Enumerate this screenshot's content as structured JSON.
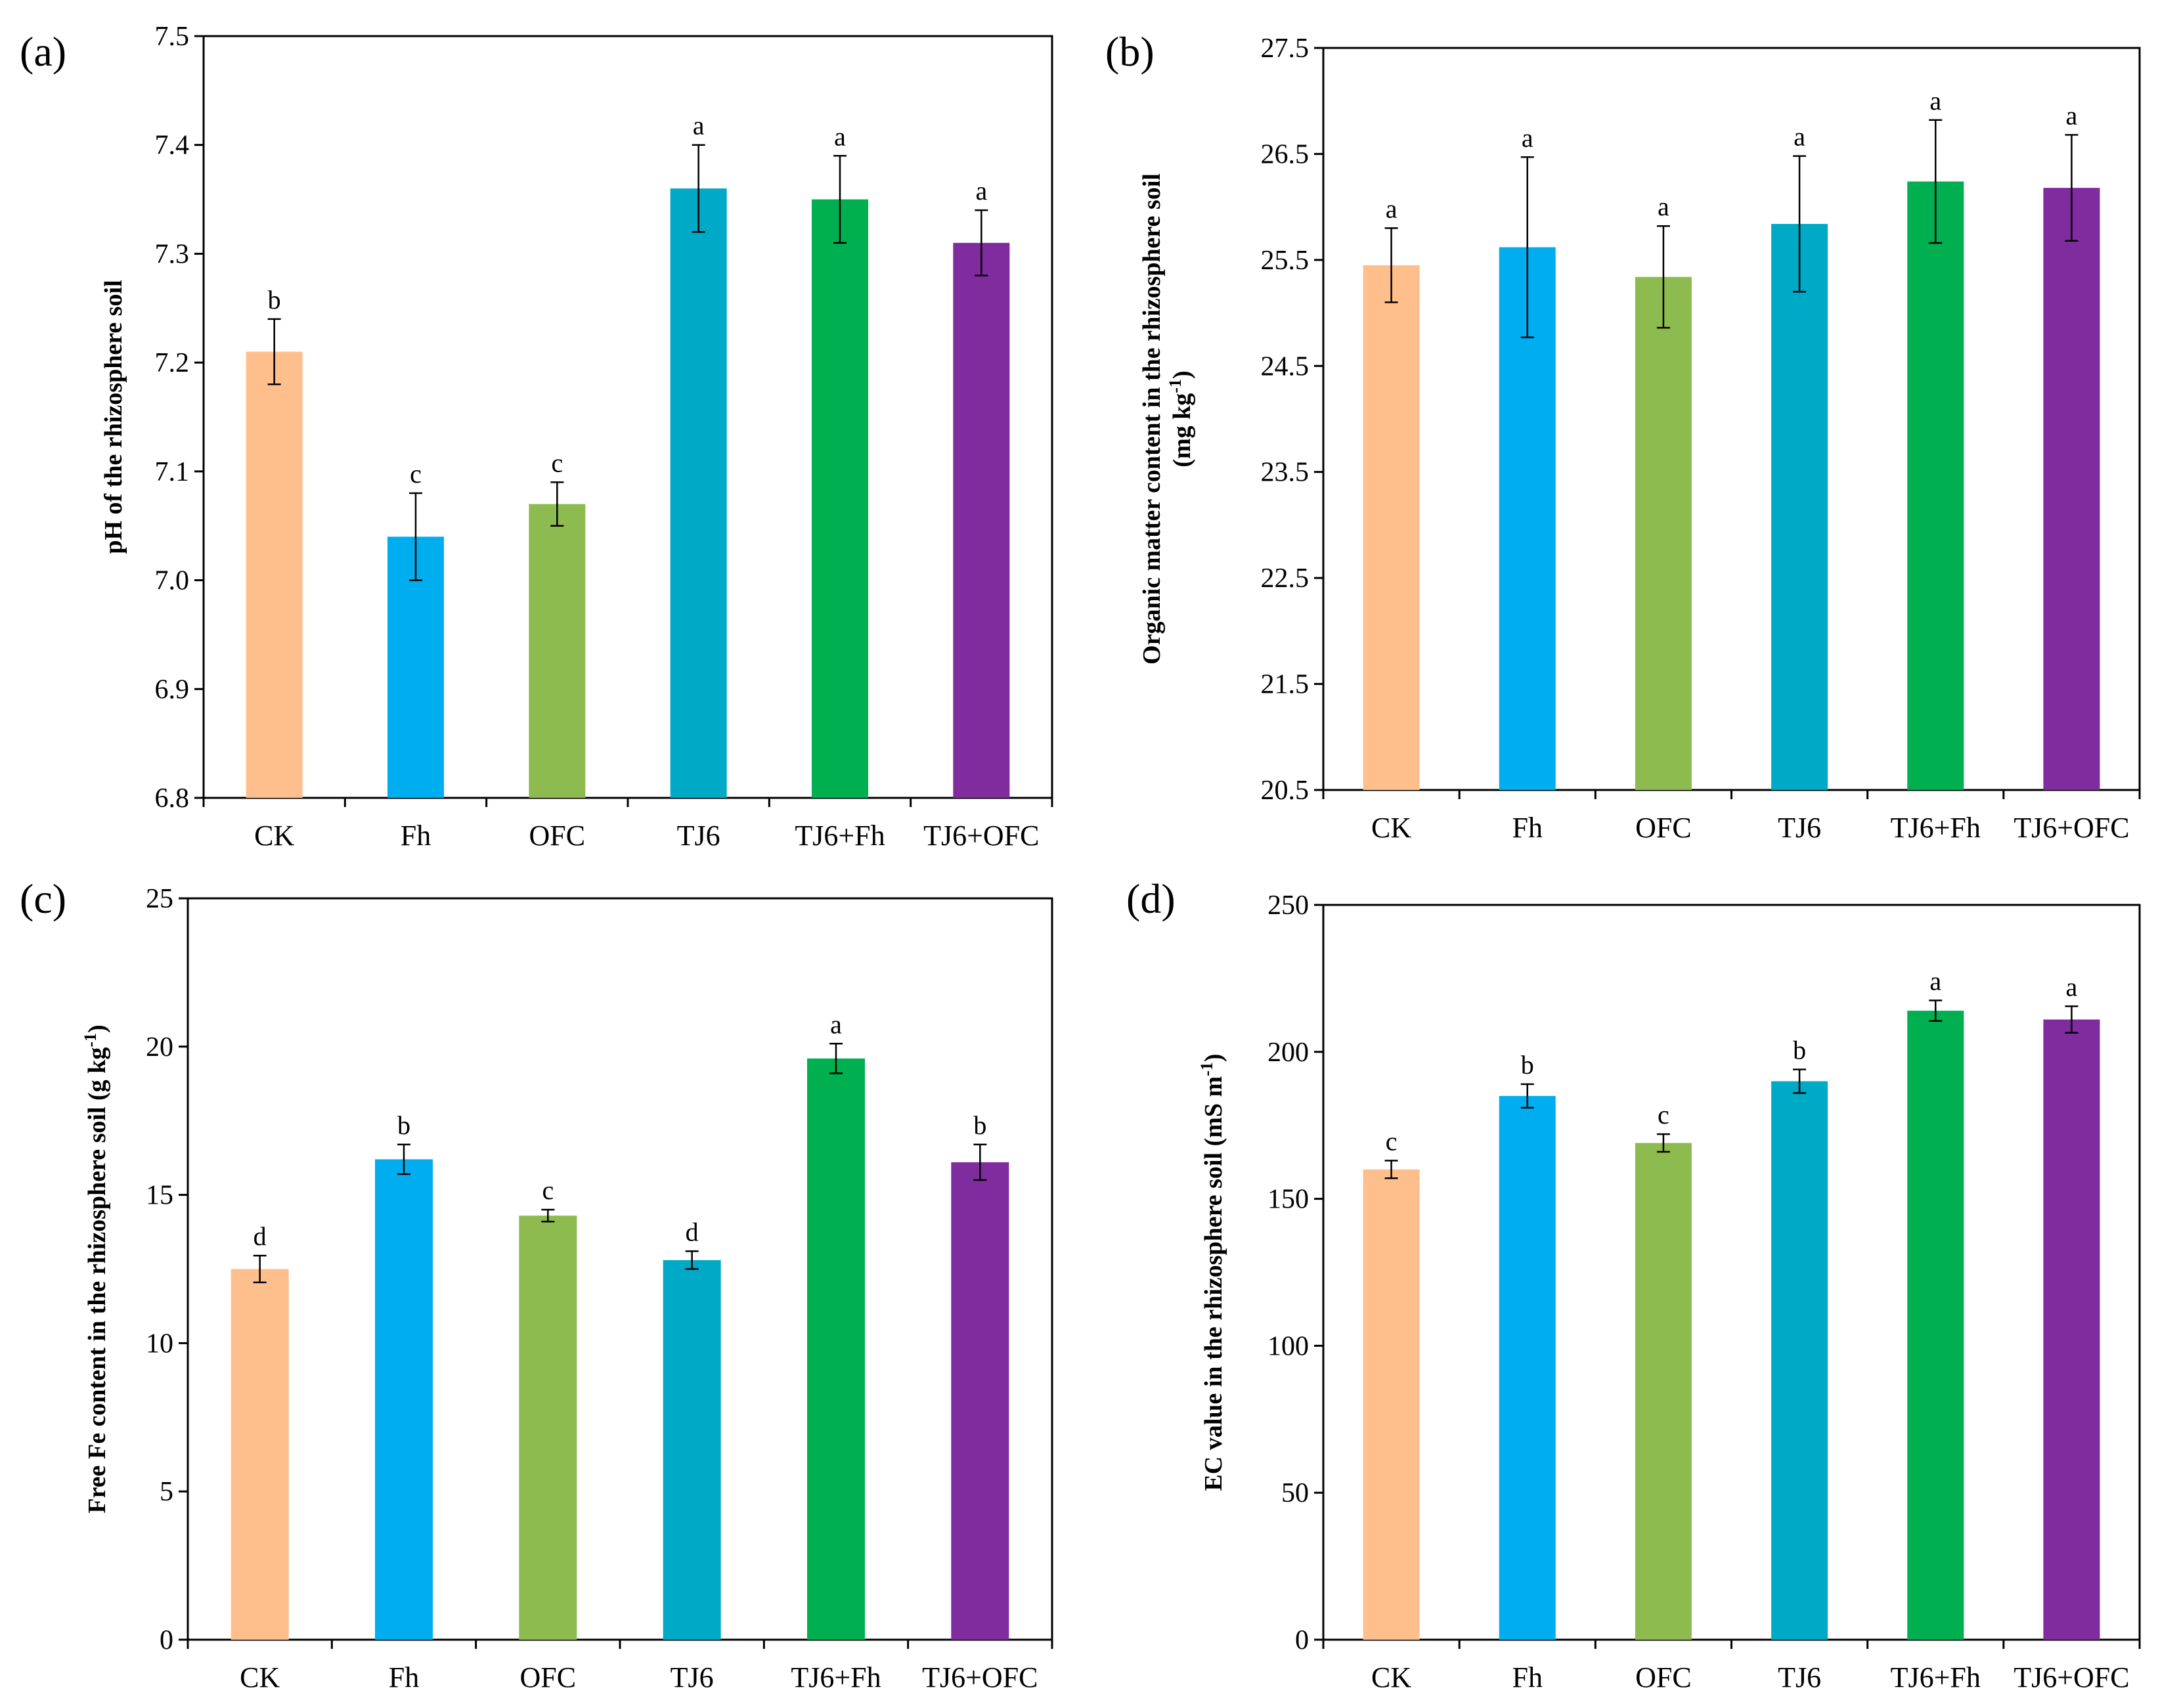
{
  "colors": {
    "CK": "#FFBF8C",
    "Fh": "#00AEEF",
    "OFC": "#8DBB50",
    "TJ6": "#00A9C5",
    "TJ6+Fh": "#00AF4F",
    "TJ6+OFC": "#7F2C9F"
  },
  "chart_data": [
    {
      "id": "a",
      "panel_label": "(a)",
      "type": "bar",
      "categories": [
        "CK",
        "Fh",
        "OFC",
        "TJ6",
        "TJ6+Fh",
        "TJ6+OFC"
      ],
      "values": [
        7.21,
        7.04,
        7.07,
        7.36,
        7.35,
        7.31
      ],
      "errors": [
        0.03,
        0.04,
        0.02,
        0.04,
        0.04,
        0.03
      ],
      "letters": [
        "b",
        "c",
        "c",
        "a",
        "a",
        "a"
      ],
      "ylabel": "pH of the rhizosphere soil",
      "ylim": [
        6.8,
        7.5
      ],
      "yticks": [
        6.8,
        6.9,
        7.0,
        7.1,
        7.2,
        7.3,
        7.4,
        7.5
      ],
      "ytick_labels": [
        "6.8",
        "6.9",
        "7.0",
        "7.1",
        "7.2",
        "7.3",
        "7.4",
        "7.5"
      ]
    },
    {
      "id": "b",
      "panel_label": "(b)",
      "type": "bar",
      "categories": [
        "CK",
        "Fh",
        "OFC",
        "TJ6",
        "TJ6+Fh",
        "TJ6+OFC"
      ],
      "values": [
        25.45,
        25.62,
        25.34,
        25.84,
        26.24,
        26.18
      ],
      "errors": [
        0.35,
        0.85,
        0.48,
        0.64,
        0.58,
        0.5
      ],
      "letters": [
        "a",
        "a",
        "a",
        "a",
        "a",
        "a"
      ],
      "ylabel": "Organic matter content in the rhizosphere soil",
      "ylabel2": "(mg kg",
      "ylabel2_sup": "-1",
      "ylabel2_end": ")",
      "ylim": [
        20.5,
        27.5
      ],
      "yticks": [
        20.5,
        21.5,
        22.5,
        23.5,
        24.5,
        25.5,
        26.5,
        27.5
      ],
      "ytick_labels": [
        "20.5",
        "21.5",
        "22.5",
        "23.5",
        "24.5",
        "25.5",
        "26.5",
        "27.5"
      ]
    },
    {
      "id": "c",
      "panel_label": "(c)",
      "type": "bar",
      "categories": [
        "CK",
        "Fh",
        "OFC",
        "TJ6",
        "TJ6+Fh",
        "TJ6+OFC"
      ],
      "values": [
        12.5,
        16.2,
        14.3,
        12.8,
        19.6,
        16.1
      ],
      "errors": [
        0.45,
        0.5,
        0.2,
        0.3,
        0.5,
        0.6
      ],
      "letters": [
        "d",
        "b",
        "c",
        "d",
        "a",
        "b"
      ],
      "ylabel": "Free Fe content in the rhizosphere soil (g kg",
      "ylabel_sup": "-1",
      "ylabel_end": ")",
      "ylim": [
        0,
        25
      ],
      "yticks": [
        0,
        5,
        10,
        15,
        20,
        25
      ],
      "ytick_labels": [
        "0",
        "5",
        "10",
        "15",
        "20",
        "25"
      ]
    },
    {
      "id": "d",
      "panel_label": "(d)",
      "type": "bar",
      "categories": [
        "CK",
        "Fh",
        "OFC",
        "TJ6",
        "TJ6+Fh",
        "TJ6+OFC"
      ],
      "values": [
        160,
        185,
        169,
        190,
        214,
        211
      ],
      "errors": [
        3,
        4,
        3,
        4,
        3.5,
        4.5
      ],
      "letters": [
        "c",
        "b",
        "c",
        "b",
        "a",
        "a"
      ],
      "ylabel": "EC value in the rhizosphere soil (mS m",
      "ylabel_sup": "-1",
      "ylabel_end": ")",
      "ylim": [
        0,
        250
      ],
      "yticks": [
        0,
        50,
        100,
        150,
        200,
        250
      ],
      "ytick_labels": [
        "0",
        "50",
        "100",
        "150",
        "200",
        "250"
      ]
    }
  ]
}
